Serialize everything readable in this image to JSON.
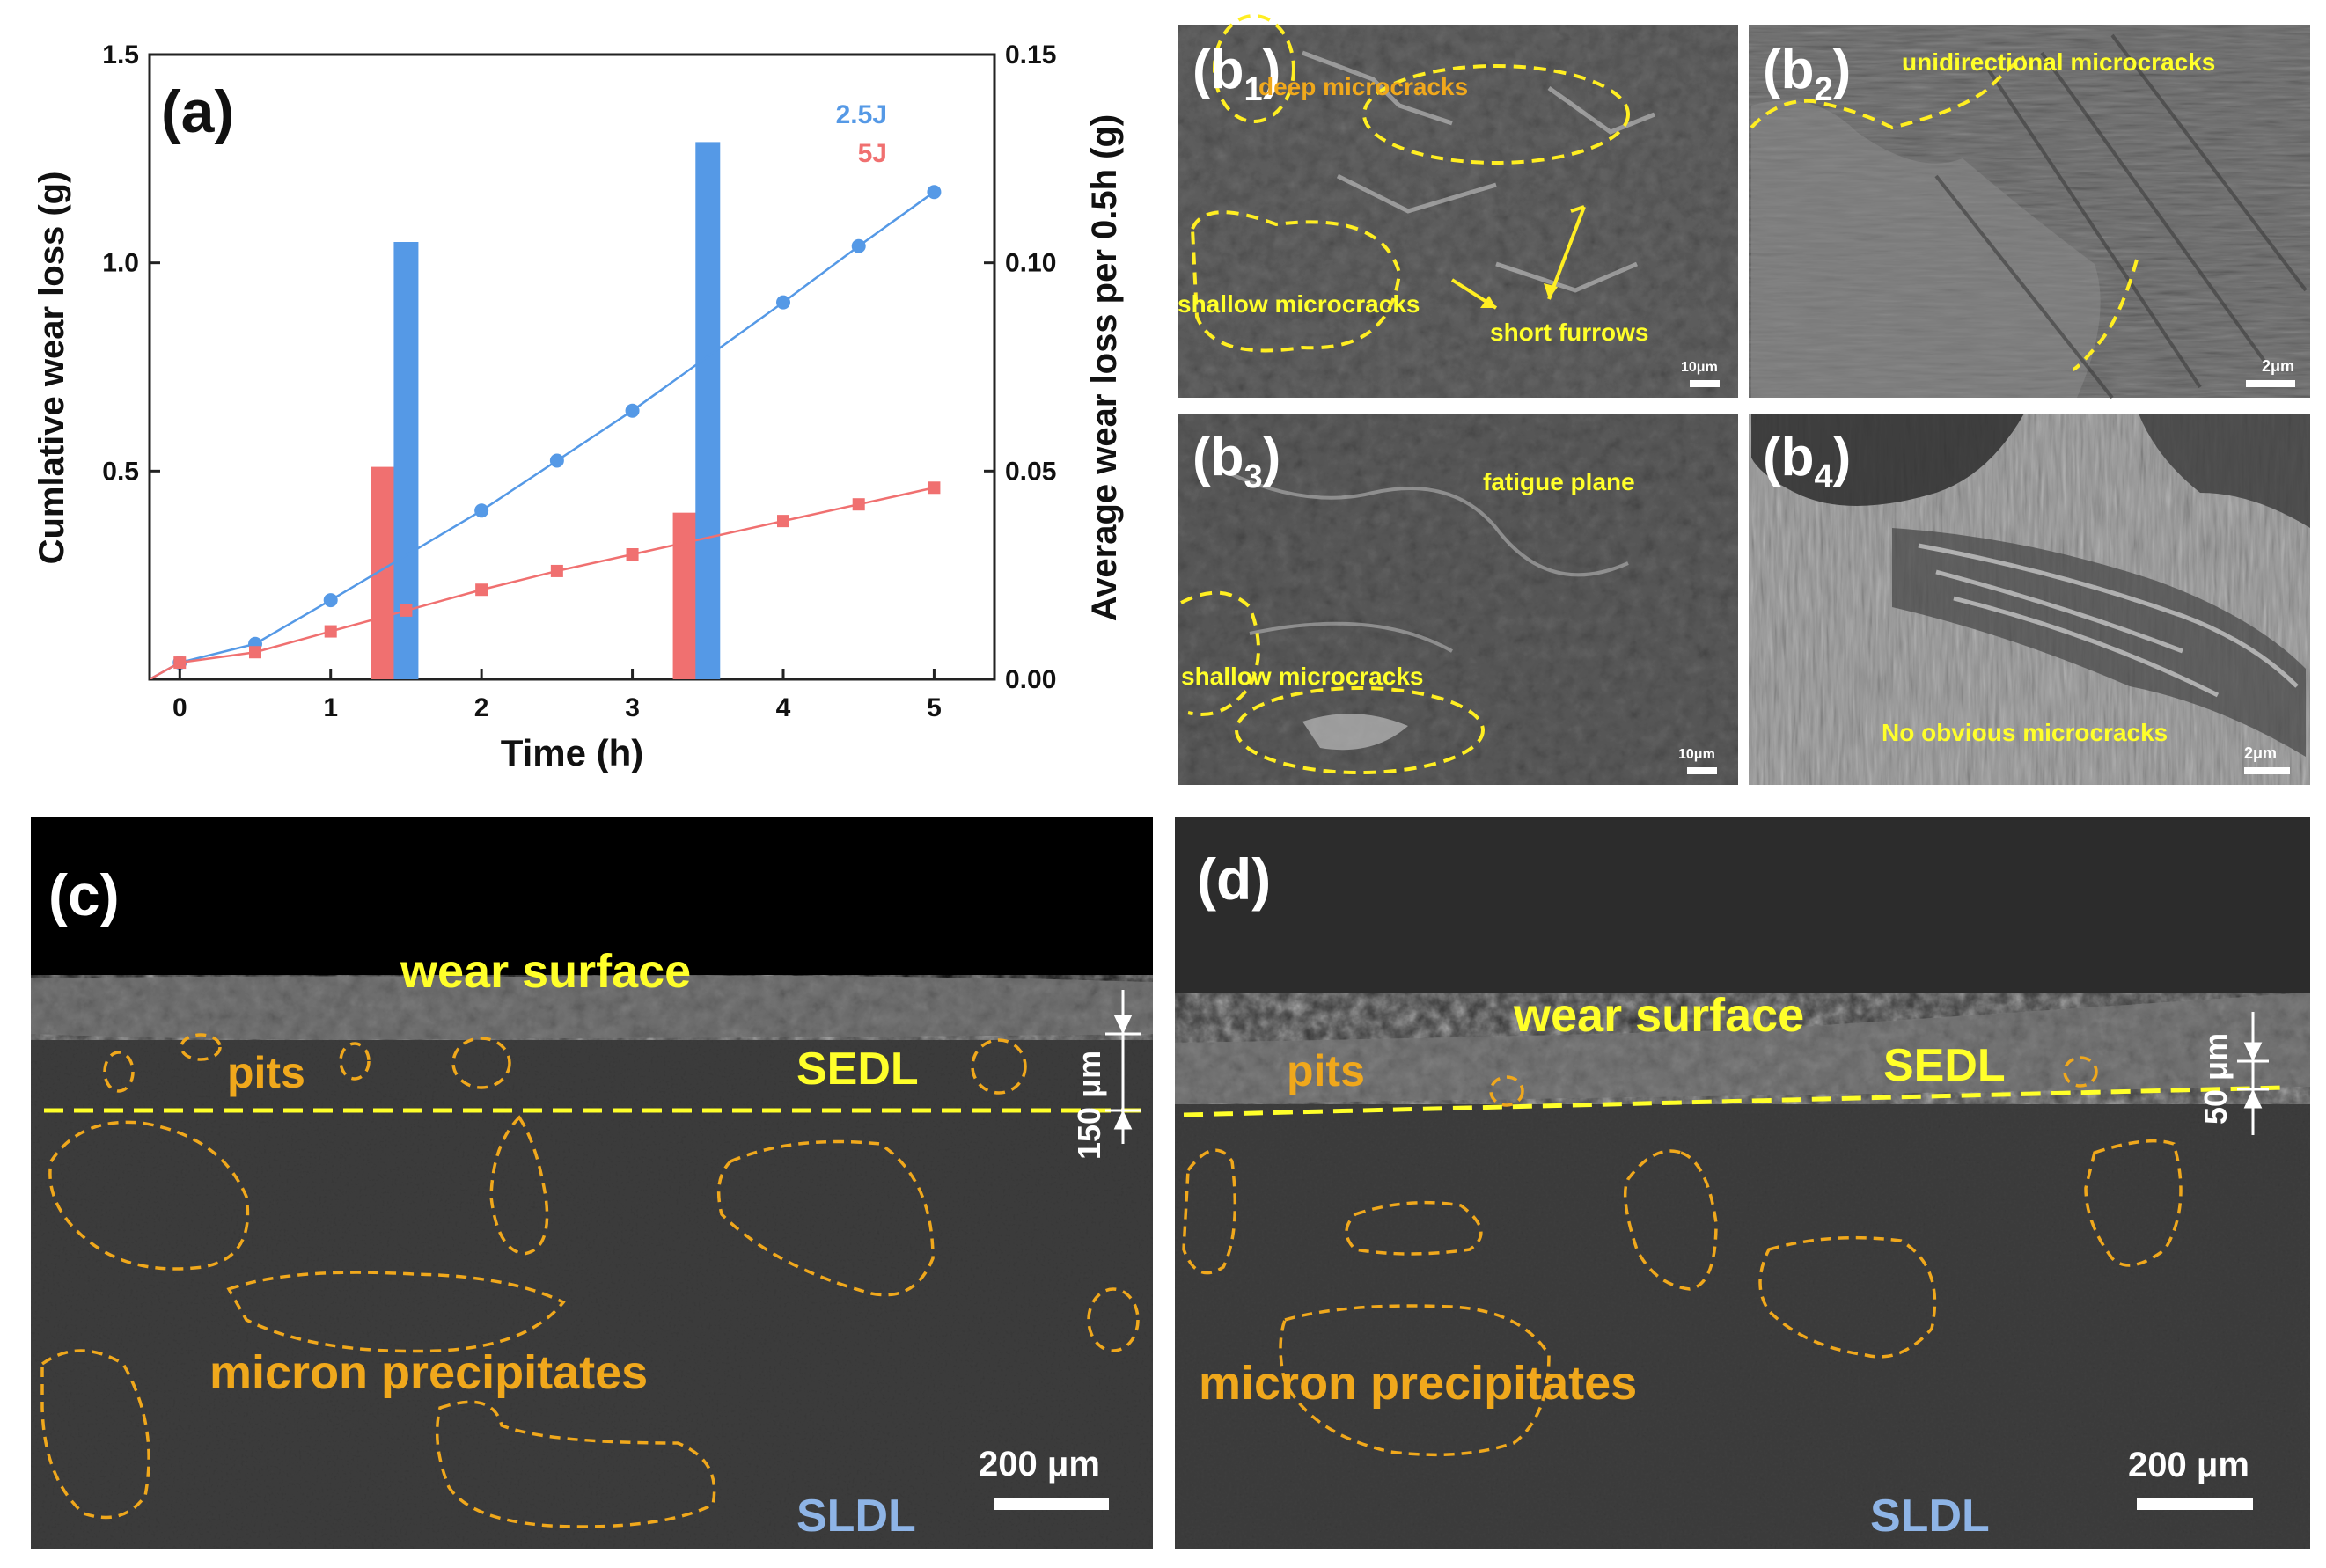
{
  "chart_data": {
    "type": "bar+line",
    "panel_label": "(a)",
    "xlabel": "Time (h)",
    "ylabel_left": "Cumlative wear loss (g)",
    "ylabel_right": "Average wear loss per 0.5h (g)",
    "xlim": [
      -0.2,
      5.4
    ],
    "ylim_left": [
      0,
      1.5
    ],
    "ylim_right": [
      0,
      0.15
    ],
    "x_ticks": [
      "0",
      "1",
      "2",
      "3",
      "4",
      "5"
    ],
    "y_left_ticks": [
      "0.5",
      "1.0",
      "1.5"
    ],
    "y_right_ticks": [
      "0.00",
      "0.05",
      "0.10",
      "0.15"
    ],
    "legend": [
      {
        "label": "2.5J",
        "color": "#5599e6"
      },
      {
        "label": "5J",
        "color": "#f07070"
      }
    ],
    "line_series": [
      {
        "name": "2.5J",
        "color": "#5599e6",
        "marker": "circle",
        "x": [
          0,
          0.5,
          1,
          2,
          2.5,
          3,
          4,
          4.5,
          5
        ],
        "y": [
          0.04,
          0.085,
          0.19,
          0.405,
          0.525,
          0.645,
          0.905,
          1.04,
          1.17
        ]
      },
      {
        "name": "5J",
        "color": "#f07070",
        "marker": "square",
        "x": [
          0,
          0.5,
          1,
          1.5,
          2,
          2.5,
          3,
          4,
          4.5,
          5
        ],
        "y": [
          0.04,
          0.065,
          0.115,
          0.165,
          0.215,
          0.26,
          0.3,
          0.38,
          0.42,
          0.46
        ]
      }
    ],
    "bar_series": [
      {
        "name": "5J",
        "color": "#f07070",
        "x": [
          1.35,
          3.35
        ],
        "y": [
          0.051,
          0.04
        ]
      },
      {
        "name": "2.5J",
        "color": "#5599e6",
        "x": [
          1.5,
          3.5
        ],
        "y": [
          0.105,
          0.129
        ]
      }
    ]
  },
  "panels": {
    "b1": {
      "label": "(b",
      "sub": "1",
      "labels": [
        "deep microcracks",
        "shallow microcracks",
        "short furrows"
      ],
      "scale": "10μm"
    },
    "b2": {
      "label": "(b",
      "sub": "2",
      "labels": [
        "unidirectional microcracks"
      ],
      "scale": "2μm"
    },
    "b3": {
      "label": "(b",
      "sub": "3",
      "labels": [
        "fatigue plane",
        "shallow microcracks"
      ],
      "scale": "10μm"
    },
    "b4": {
      "label": "(b",
      "sub": "4",
      "labels": [
        "No obvious microcracks"
      ],
      "scale": "2μm"
    },
    "c": {
      "label": "(c)",
      "wear_surface": "wear  surface",
      "pits": "pits",
      "sedl": "SEDL",
      "thickness": "150 μm",
      "precip": "micron precipitates",
      "scale": "200 μm",
      "sldl": "SLDL"
    },
    "d": {
      "label": "(d)",
      "wear_surface": "wear  surface",
      "pits": "pits",
      "sedl": "SEDL",
      "thickness": "50 μm",
      "precip": "micron precipitates",
      "scale": "200 μm",
      "sldl": "SLDL"
    }
  },
  "colors": {
    "yellow": "#ffff2a",
    "orange": "#f0a81c",
    "sldl_blue": "#8eb4e6"
  }
}
